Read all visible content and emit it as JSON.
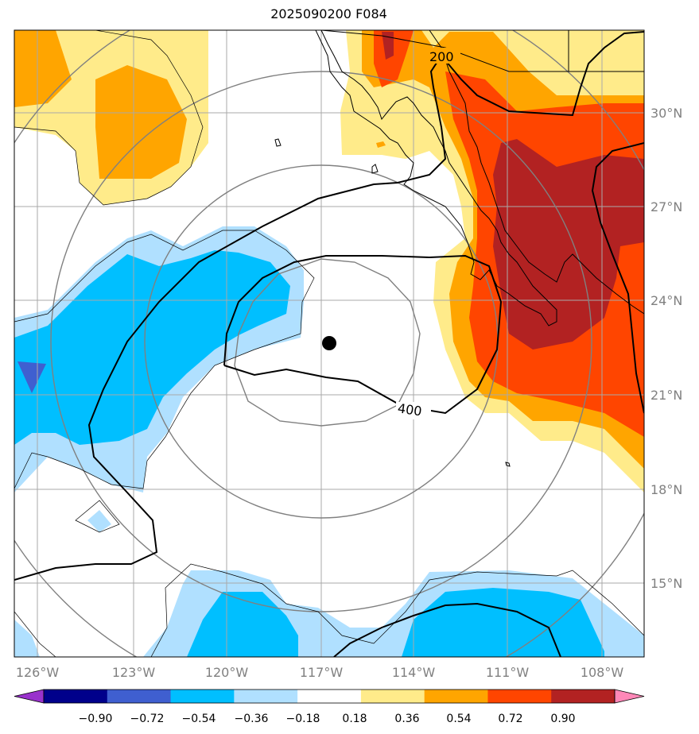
{
  "title": "2025090200 F084",
  "lon_labels": [
    "126°W",
    "123°W",
    "120°W",
    "117°W",
    "114°W",
    "111°W",
    "108°W"
  ],
  "lat_labels": [
    "30°N",
    "27°N",
    "24°N",
    "21°N",
    "18°N",
    "15°N"
  ],
  "contour_labels": [
    "200",
    "400"
  ],
  "colorbar": {
    "tick_labels": [
      "−0.90",
      "−0.72",
      "−0.54",
      "−0.36",
      "−0.18",
      "0.18",
      "0.36",
      "0.54",
      "0.72",
      "0.90"
    ],
    "colors": [
      "#9932cc",
      "#00008b",
      "#3f5fd0",
      "#00bfff",
      "#b0e0ff",
      "#ffffff",
      "#ffeb8a",
      "#ffa500",
      "#ff4500",
      "#b22222",
      "#ff88b8"
    ]
  },
  "colors": {
    "light_blue": "#b0e0ff",
    "deep_sky_blue": "#00bfff",
    "royal_blue": "#3f5fd0",
    "light_yellow": "#ffeb8a",
    "orange": "#ffa500",
    "orange_red": "#ff4500",
    "firebrick": "#b22222",
    "gridline": "#a9a9a9",
    "range_ring": "#808080"
  },
  "storm_center_icon": "black-dot"
}
